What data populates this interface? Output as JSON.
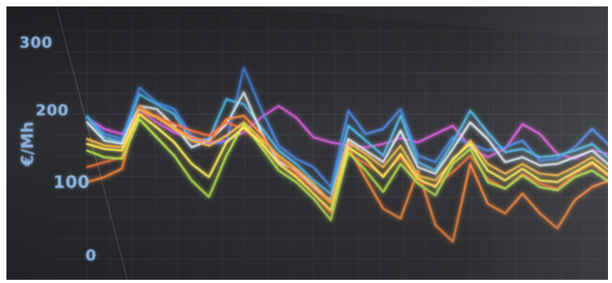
{
  "chart_data": {
    "type": "line",
    "title": "",
    "ylabel": "€/Mh",
    "y_ticks": [
      "300",
      "200",
      "100",
      "0"
    ],
    "ylim": [
      0,
      330
    ],
    "grid": true,
    "background_color": "#2c2d31",
    "axis_label_color": "#8fb6e3",
    "x": [
      0,
      1,
      2,
      3,
      4,
      5,
      6,
      7,
      8,
      9,
      10,
      11,
      12,
      13,
      14,
      15,
      16,
      17,
      18,
      19,
      20,
      21,
      22,
      23,
      24,
      25,
      26,
      27,
      28,
      29,
      30
    ],
    "series": [
      {
        "color": "#d65ad8",
        "values": [
          196,
          182,
          176,
          205,
          190,
          178,
          170,
          166,
          168,
          178,
          196,
          210,
          196,
          172,
          166,
          162,
          160,
          164,
          171,
          166,
          176,
          186,
          160,
          148,
          158,
          188,
          176,
          152,
          146,
          156,
          152
        ]
      },
      {
        "color": "#4a84e0",
        "values": [
          198,
          176,
          170,
          232,
          214,
          206,
          174,
          164,
          166,
          256,
          206,
          162,
          146,
          136,
          112,
          204,
          176,
          182,
          206,
          150,
          142,
          172,
          164,
          156,
          160,
          168,
          144,
          146,
          160,
          182,
          162
        ]
      },
      {
        "color": "#4fb6e4",
        "values": [
          196,
          172,
          166,
          224,
          212,
          200,
          168,
          170,
          218,
          212,
          184,
          156,
          140,
          120,
          104,
          186,
          168,
          150,
          198,
          142,
          132,
          166,
          204,
          178,
          154,
          158,
          148,
          150,
          156,
          164,
          146
        ]
      },
      {
        "color": "#d8e9f0",
        "values": [
          190,
          168,
          164,
          210,
          206,
          186,
          160,
          168,
          188,
          226,
          178,
          142,
          132,
          112,
          96,
          170,
          156,
          142,
          180,
          136,
          128,
          158,
          190,
          170,
          142,
          148,
          138,
          140,
          148,
          156,
          138
        ]
      },
      {
        "color": "#ff8a3a",
        "values": [
          118,
          124,
          134,
          210,
          196,
          184,
          172,
          166,
          194,
          198,
          176,
          146,
          130,
          110,
          92,
          160,
          122,
          86,
          74,
          132,
          66,
          46,
          140,
          92,
          80,
          104,
          80,
          62,
          96,
          112,
          120
        ]
      },
      {
        "color": "#f2703e",
        "values": [
          136,
          142,
          148,
          200,
          198,
          188,
          180,
          174,
          190,
          182,
          164,
          140,
          126,
          104,
          80,
          152,
          140,
          126,
          148,
          118,
          114,
          130,
          150,
          122,
          110,
          128,
          116,
          110,
          128,
          140,
          124
        ]
      },
      {
        "color": "#f4b94b",
        "values": [
          170,
          162,
          160,
          206,
          196,
          182,
          168,
          162,
          174,
          190,
          170,
          150,
          134,
          116,
          94,
          166,
          152,
          136,
          162,
          126,
          120,
          144,
          168,
          140,
          128,
          140,
          128,
          126,
          136,
          148,
          132
        ]
      },
      {
        "color": "#b9e34e",
        "values": [
          156,
          148,
          146,
          194,
          172,
          150,
          120,
          100,
          150,
          188,
          160,
          132,
          118,
          98,
          72,
          154,
          132,
          106,
          140,
          116,
          102,
          140,
          158,
          118,
          110,
          126,
          112,
          108,
          124,
          132,
          118
        ]
      },
      {
        "color": "#fff15a",
        "values": [
          164,
          158,
          156,
          200,
          184,
          166,
          140,
          124,
          166,
          184,
          166,
          140,
          124,
          104,
          84,
          160,
          146,
          124,
          152,
          122,
          112,
          146,
          164,
          132,
          120,
          134,
          120,
          118,
          130,
          142,
          126
        ]
      }
    ]
  }
}
